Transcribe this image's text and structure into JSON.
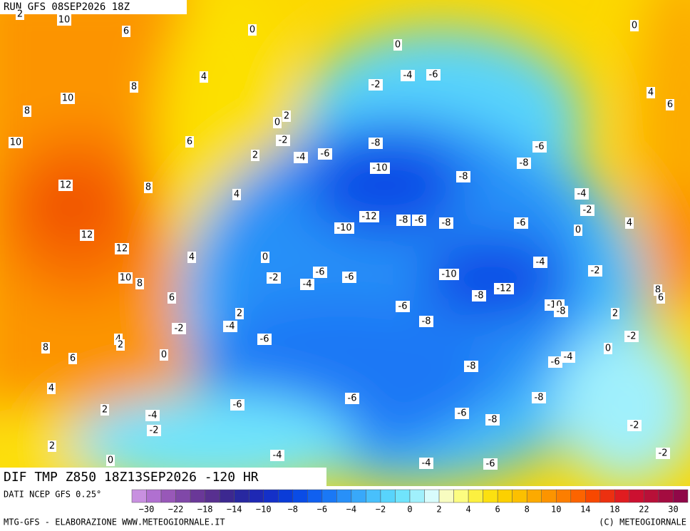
{
  "header": {
    "title": "RUN GFS 08SEP2026 18Z"
  },
  "footer": {
    "title": "DIF TMP Z850 18Z13SEP2026 -120 HR"
  },
  "legend": {
    "source": "DATI NCEP GFS 0.25°",
    "labels": [
      "−30",
      "−22",
      "−18",
      "−14",
      "−10",
      "−8",
      "−6",
      "−4",
      "−2",
      "0",
      "2",
      "4",
      "6",
      "8",
      "10",
      "14",
      "18",
      "22",
      "30"
    ],
    "colors": [
      "#c890e0",
      "#b070d0",
      "#9858b8",
      "#8048a8",
      "#6a3898",
      "#583090",
      "#3c2890",
      "#2828a0",
      "#1e28b4",
      "#1430c8",
      "#0a3cd8",
      "#0a4ce6",
      "#1060f0",
      "#1a78f5",
      "#2890f8",
      "#38a8fa",
      "#48c0fc",
      "#58d4fc",
      "#70e4fc",
      "#a0f0fc",
      "#d8fcfc",
      "#f8fcc0",
      "#fcfc80",
      "#fcf040",
      "#fce010",
      "#fcd000",
      "#fcc000",
      "#fcaa00",
      "#fc9400",
      "#fc7e00",
      "#fc6400",
      "#f84800",
      "#ec3010",
      "#e01c20",
      "#cc1030",
      "#b81038",
      "#a40c40",
      "#900848"
    ]
  },
  "credits": {
    "left": "MTG-GFS - ELABORAZIONE WWW.METEOGIORNALE.IT",
    "right": "(C) METEOGIORNALE"
  },
  "map": {
    "labels": [
      2,
      10,
      6,
      0,
      0,
      0,
      4,
      8,
      -2,
      -4,
      -6,
      4,
      10,
      6,
      8,
      2,
      0,
      -2,
      10,
      6,
      2,
      -4,
      -6,
      -8,
      -6,
      -10,
      -8,
      -8,
      12,
      8,
      4,
      -4,
      -2,
      -12,
      -8,
      -6,
      -8,
      -6,
      4,
      0,
      -10,
      12,
      12,
      4,
      0,
      -4,
      -2,
      -2,
      -6,
      -6,
      -10,
      10,
      8,
      -4,
      -12,
      -8,
      8,
      6,
      6,
      -10,
      -8,
      -6,
      2,
      2,
      -8,
      -2,
      -4,
      -6,
      -2,
      4,
      2,
      0,
      8,
      6,
      0,
      -4,
      -6,
      -8,
      -6,
      -8,
      -6,
      4,
      2,
      -4,
      -6,
      -8,
      -2,
      -2,
      2,
      0,
      -4,
      -2,
      -4,
      -6
    ]
  }
}
